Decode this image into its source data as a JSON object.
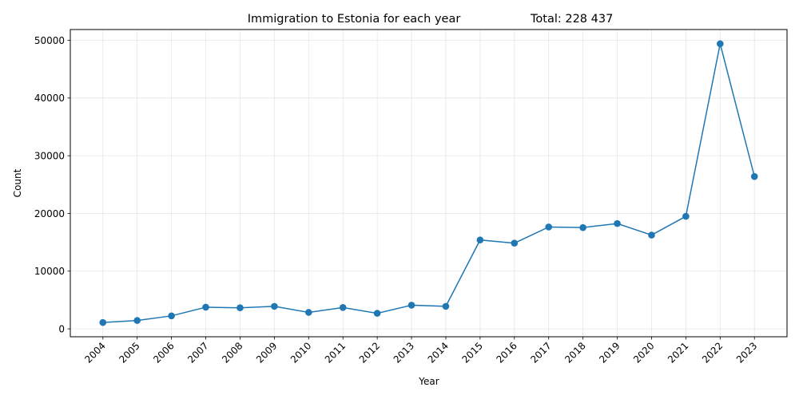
{
  "chart_data": {
    "type": "line",
    "title": "Immigration to Estonia for each year",
    "total_label": "Total: 228 437",
    "xlabel": "Year",
    "ylabel": "Count",
    "categories": [
      "2004",
      "2005",
      "2006",
      "2007",
      "2008",
      "2009",
      "2010",
      "2011",
      "2012",
      "2013",
      "2014",
      "2015",
      "2016",
      "2017",
      "2018",
      "2019",
      "2020",
      "2021",
      "2022",
      "2023"
    ],
    "series": [
      {
        "values": [
          1100,
          1450,
          2250,
          3750,
          3650,
          3900,
          2850,
          3700,
          2700,
          4100,
          3900,
          15400,
          14850,
          17650,
          17550,
          18250,
          16250,
          19500,
          49400,
          26400
        ],
        "color": "#1f77b4"
      }
    ],
    "ylim": [
      -1370,
      51870
    ],
    "yticks": [
      0,
      10000,
      20000,
      30000,
      40000,
      50000
    ],
    "grid": true,
    "marker": "circle"
  }
}
